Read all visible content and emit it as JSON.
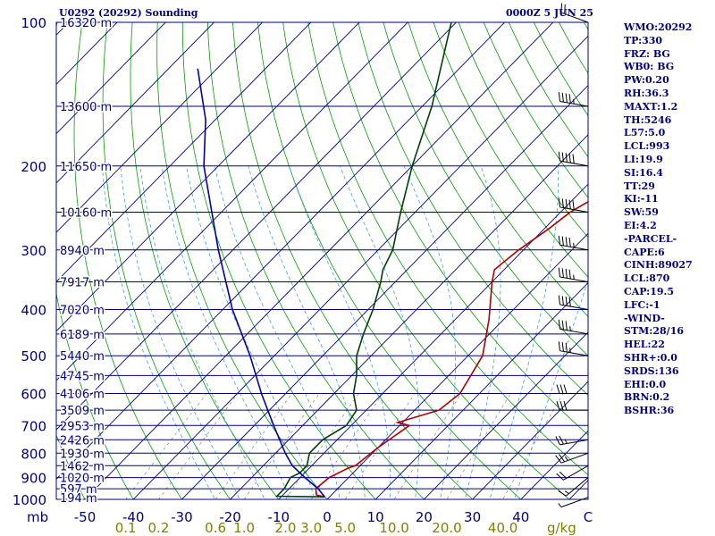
{
  "header": {
    "station": "U0292 (20292) Sounding",
    "time": "0000Z  5 JUN 25"
  },
  "indices": [
    "WMO:20292",
    "TP:330",
    "FRZ: BG",
    "WB0: BG",
    "PW:0.20",
    "RH:36.3",
    "MAXT:1.2",
    "TH:5246",
    "L57:5.0",
    "LCL:993",
    "LI:19.9",
    "SI:16.4",
    "TT:29",
    "KI:-11",
    "SW:59",
    "EI:4.2",
    "-PARCEL-",
    "CAPE:6",
    "CINH:89027",
    "LCL:870",
    "CAP:19.5",
    "LFC:-1",
    "-WIND-",
    "STM:28/16",
    "HEL:22",
    "SHR+:0.0",
    "SRDS:136",
    "EHI:0.0",
    "BRN:0.2",
    "BSHR:36"
  ],
  "colors": {
    "temperature": "#b00000",
    "dewpoint": "#004000",
    "parcel": "#0000b0",
    "isobar": "#000080",
    "isotherm": "#000080",
    "dry_adiabat": "#00a000",
    "moist_adiabat": "#40a0e0",
    "mixing_ratio": "#808080",
    "wind_barb": "#000000",
    "text": "#000080",
    "ratio_labels": "#808000"
  },
  "chart_data": {
    "type": "line",
    "subtype": "skew-T log-p sounding",
    "pressure_axis": {
      "unit_label": "mb",
      "scale": "log",
      "range": [
        1000,
        100
      ],
      "levels": [
        100,
        200,
        300,
        400,
        500,
        600,
        700,
        800,
        900,
        1000
      ]
    },
    "temperature_axis": {
      "unit": "°C",
      "ticks": [
        "-50",
        "-40",
        "-30",
        "-20",
        "-10",
        "0",
        "10",
        "20",
        "30",
        "40",
        "C"
      ]
    },
    "mixing_ratio_axis": {
      "unit_label": "g/kg",
      "ticks": [
        "0.1",
        "0.2",
        "0.6",
        "1.0",
        "2.0",
        "3.0",
        "5.0",
        "10.0",
        "20.0",
        "40.0"
      ]
    },
    "height_labels": [
      {
        "p": 100,
        "label": "16320 m"
      },
      {
        "p": 150,
        "label": "13600 m"
      },
      {
        "p": 200,
        "label": "11650 m"
      },
      {
        "p": 250,
        "label": "10160 m"
      },
      {
        "p": 300,
        "label": "8940 m"
      },
      {
        "p": 350,
        "label": "7917 m"
      },
      {
        "p": 400,
        "label": "7020 m"
      },
      {
        "p": 450,
        "label": "6189 m"
      },
      {
        "p": 500,
        "label": "5440 m"
      },
      {
        "p": 550,
        "label": "4745 m"
      },
      {
        "p": 600,
        "label": "4106 m"
      },
      {
        "p": 650,
        "label": "3509 m"
      },
      {
        "p": 700,
        "label": "2953 m"
      },
      {
        "p": 750,
        "label": "2426 m"
      },
      {
        "p": 800,
        "label": "1930 m"
      },
      {
        "p": 850,
        "label": "1462 m"
      },
      {
        "p": 900,
        "label": "1020 m"
      },
      {
        "p": 950,
        "label": "597 m"
      },
      {
        "p": 1000,
        "label": "194 m"
      }
    ],
    "series": [
      {
        "key": "temperature",
        "points": [
          [
            988,
            -1
          ],
          [
            980,
            -3
          ],
          [
            950,
            -4.5
          ],
          [
            900,
            -4
          ],
          [
            860,
            -2
          ],
          [
            850,
            -1
          ],
          [
            780,
            0
          ],
          [
            700,
            2
          ],
          [
            690,
            -1
          ],
          [
            650,
            5
          ],
          [
            600,
            6
          ],
          [
            500,
            3
          ],
          [
            420,
            -3
          ],
          [
            350,
            -10
          ],
          [
            330,
            -12
          ],
          [
            300,
            -11
          ],
          [
            270,
            -9
          ],
          [
            250,
            -8
          ],
          [
            220,
            -4
          ],
          [
            200,
            -3
          ],
          [
            150,
            -3
          ],
          [
            110,
            -4
          ],
          [
            100,
            -7
          ]
        ]
      },
      {
        "key": "dewpoint",
        "points": [
          [
            988,
            -1
          ],
          [
            985,
            -11
          ],
          [
            950,
            -11
          ],
          [
            900,
            -12
          ],
          [
            880,
            -11
          ],
          [
            850,
            -11
          ],
          [
            800,
            -13
          ],
          [
            750,
            -13
          ],
          [
            700,
            -11
          ],
          [
            650,
            -12
          ],
          [
            600,
            -16
          ],
          [
            550,
            -19
          ],
          [
            500,
            -23
          ],
          [
            450,
            -26
          ],
          [
            400,
            -29
          ],
          [
            350,
            -33
          ],
          [
            330,
            -35
          ],
          [
            300,
            -37
          ],
          [
            250,
            -43
          ],
          [
            200,
            -50
          ],
          [
            150,
            -58
          ],
          [
            100,
            -71
          ]
        ]
      },
      {
        "key": "parcel",
        "points": [
          [
            988,
            -1
          ],
          [
            950,
            -4
          ],
          [
            900,
            -9
          ],
          [
            850,
            -14
          ],
          [
            800,
            -18
          ],
          [
            700,
            -26
          ],
          [
            600,
            -35
          ],
          [
            500,
            -45
          ],
          [
            400,
            -58
          ],
          [
            300,
            -73
          ],
          [
            250,
            -82
          ],
          [
            200,
            -93
          ],
          [
            160,
            -102
          ],
          [
            125,
            -114
          ]
        ]
      }
    ],
    "wind_barbs": [
      {
        "p": 990,
        "dir": 250,
        "spd": 5
      },
      {
        "p": 900,
        "dir": 230,
        "spd": 15
      },
      {
        "p": 850,
        "dir": 240,
        "spd": 20
      },
      {
        "p": 800,
        "dir": 250,
        "spd": 25
      },
      {
        "p": 750,
        "dir": 260,
        "spd": 25
      },
      {
        "p": 650,
        "dir": 270,
        "spd": 30
      },
      {
        "p": 600,
        "dir": 270,
        "spd": 30
      },
      {
        "p": 500,
        "dir": 280,
        "spd": 35
      },
      {
        "p": 450,
        "dir": 280,
        "spd": 35
      },
      {
        "p": 400,
        "dir": 280,
        "spd": 40
      },
      {
        "p": 350,
        "dir": 280,
        "spd": 45
      },
      {
        "p": 300,
        "dir": 280,
        "spd": 45
      },
      {
        "p": 250,
        "dir": 280,
        "spd": 50
      },
      {
        "p": 200,
        "dir": 280,
        "spd": 50
      },
      {
        "p": 150,
        "dir": 280,
        "spd": 45
      },
      {
        "p": 100,
        "dir": 290,
        "spd": 20
      }
    ]
  }
}
